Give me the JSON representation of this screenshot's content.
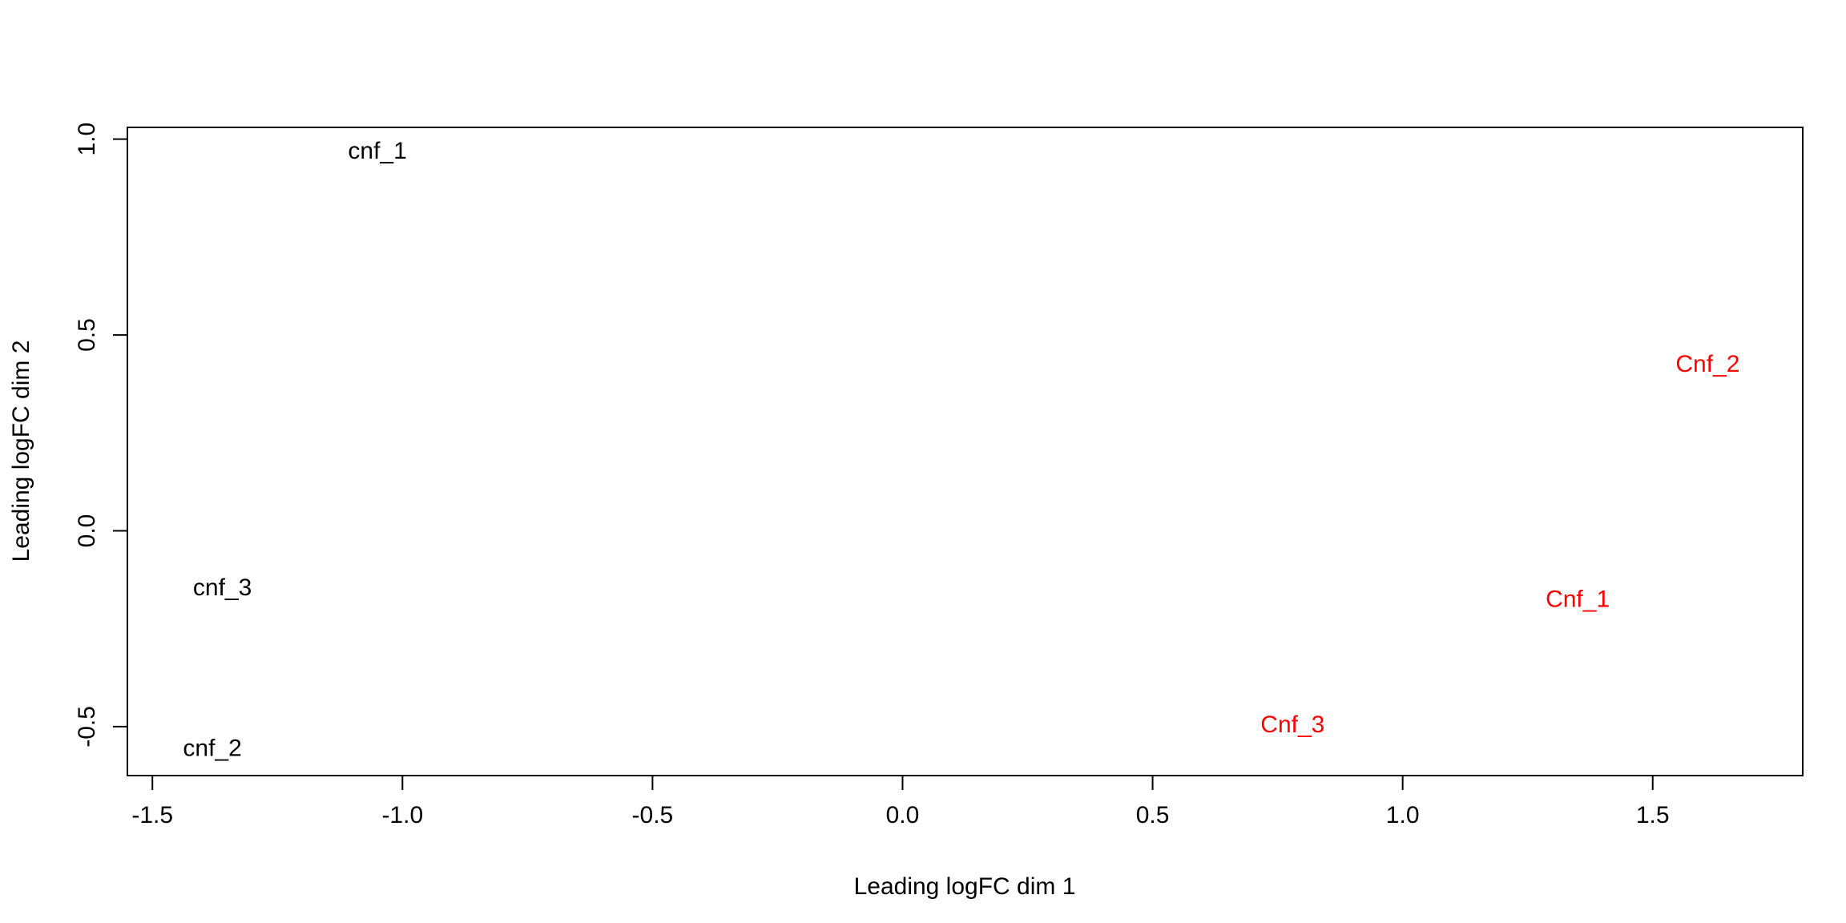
{
  "chart_data": {
    "type": "scatter",
    "title": "",
    "xlabel": "Leading logFC dim 1",
    "ylabel": "Leading logFC dim 2",
    "xlim": [
      -1.55,
      1.8
    ],
    "ylim": [
      -0.625,
      1.03
    ],
    "x_ticks": [
      -1.5,
      -1.0,
      -0.5,
      0.0,
      0.5,
      1.0,
      1.5
    ],
    "x_tick_labels": [
      "-1.5",
      "-1.0",
      "-0.5",
      "0.0",
      "0.5",
      "1.0",
      "1.5"
    ],
    "y_ticks": [
      -0.5,
      0.0,
      0.5,
      1.0
    ],
    "y_tick_labels": [
      "-0.5",
      "0.0",
      "0.5",
      "1.0"
    ],
    "grid": false,
    "legend": "none",
    "points": [
      {
        "label": "cnf_1",
        "x": -1.05,
        "y": 0.97,
        "color": "#000000"
      },
      {
        "label": "cnf_3",
        "x": -1.36,
        "y": -0.145,
        "color": "#000000"
      },
      {
        "label": "cnf_2",
        "x": -1.38,
        "y": -0.555,
        "color": "#000000"
      },
      {
        "label": "Cnf_2",
        "x": 1.61,
        "y": 0.425,
        "color": "#ff0000"
      },
      {
        "label": "Cnf_1",
        "x": 1.35,
        "y": -0.175,
        "color": "#ff0000"
      },
      {
        "label": "Cnf_3",
        "x": 0.78,
        "y": -0.495,
        "color": "#ff0000"
      }
    ]
  }
}
